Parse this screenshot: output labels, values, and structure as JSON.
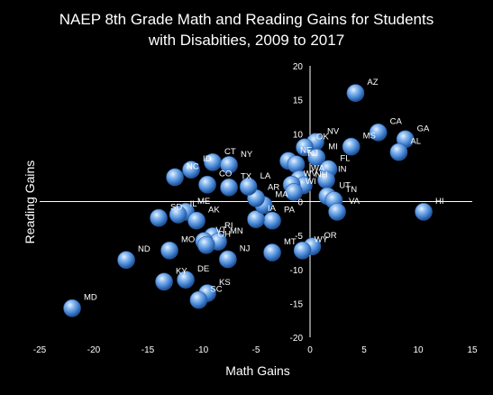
{
  "chart_data": {
    "type": "scatter",
    "title": [
      "NAEP 8th Grade Math and Reading Gains for Students",
      "with Disabities, 2009 to 2017"
    ],
    "xlabel": "Math Gains",
    "ylabel": "Reading Gains",
    "xlim": [
      -25,
      15
    ],
    "ylim": [
      -20,
      20
    ],
    "xticks": [
      -25,
      -20,
      -15,
      -10,
      -5,
      0,
      5,
      10,
      15
    ],
    "yticks": [
      -20,
      -15,
      -10,
      -5,
      0,
      5,
      10,
      15,
      20
    ],
    "grid": false,
    "marker_color": "#4f8fd6",
    "background": "#000000",
    "points": [
      {
        "label": "AZ",
        "x": 4.2,
        "y": 16
      },
      {
        "label": "CA",
        "x": 6.3,
        "y": 10.2
      },
      {
        "label": "GA",
        "x": 8.8,
        "y": 9.2
      },
      {
        "label": "AL",
        "x": 8.2,
        "y": 7.3
      },
      {
        "label": "MS",
        "x": 3.8,
        "y": 8.1
      },
      {
        "label": "NV",
        "x": 0.5,
        "y": 8.8
      },
      {
        "label": "OK",
        "x": -0.5,
        "y": 8
      },
      {
        "label": "MI",
        "x": 0.6,
        "y": 6.5
      },
      {
        "label": "NE",
        "x": -2,
        "y": 6
      },
      {
        "label": "NJ",
        "x": -1.3,
        "y": 5.5
      },
      {
        "label": "FL",
        "x": 1.7,
        "y": 4.8
      },
      {
        "label": "IN",
        "x": 1.5,
        "y": 3.2
      },
      {
        "label": "WA",
        "x": -1,
        "y": 3.3
      },
      {
        "label": "NH",
        "x": -0.6,
        "y": 2.4
      },
      {
        "label": "WV",
        "x": -1.7,
        "y": 2.5
      },
      {
        "label": "WI",
        "x": -1.5,
        "y": 1.4
      },
      {
        "label": "UT",
        "x": 1.6,
        "y": 0.8
      },
      {
        "label": "TN",
        "x": 2.2,
        "y": 0.2
      },
      {
        "label": "HI",
        "x": 10.5,
        "y": -1.5
      },
      {
        "label": "VA",
        "x": 2.5,
        "y": -1.5
      },
      {
        "label": "PA",
        "x": -3.5,
        "y": -2.8
      },
      {
        "label": "IA",
        "x": -5,
        "y": -2.6
      },
      {
        "label": "MA",
        "x": -4.3,
        "y": -0.5
      },
      {
        "label": "AR",
        "x": -5,
        "y": 0.5
      },
      {
        "label": "LA",
        "x": -5.7,
        "y": 2.2
      },
      {
        "label": "TX",
        "x": -7.5,
        "y": 2.1
      },
      {
        "label": "CO",
        "x": -9.5,
        "y": 2.5
      },
      {
        "label": "CT",
        "x": -9,
        "y": 5.8
      },
      {
        "label": "NY",
        "x": -7.5,
        "y": 5.4
      },
      {
        "label": "ID",
        "x": -11,
        "y": 4.7
      },
      {
        "label": "NC",
        "x": -12.5,
        "y": 3.6
      },
      {
        "label": "ME",
        "x": -11.5,
        "y": -1.5
      },
      {
        "label": "IL",
        "x": -12.2,
        "y": -1.9
      },
      {
        "label": "AK",
        "x": -10.5,
        "y": -2.8
      },
      {
        "label": "SD",
        "x": -14,
        "y": -2.4
      },
      {
        "label": "RI",
        "x": -9,
        "y": -5.1
      },
      {
        "label": "MN",
        "x": -8.5,
        "y": -5.9
      },
      {
        "label": "VT",
        "x": -9.8,
        "y": -5.8
      },
      {
        "label": "OH",
        "x": -9.6,
        "y": -6.4
      },
      {
        "label": "MO",
        "x": -13,
        "y": -7.2
      },
      {
        "label": "ND",
        "x": -17,
        "y": -8.6
      },
      {
        "label": "NJ",
        "x": -7.6,
        "y": -8.5
      },
      {
        "label": "OR",
        "x": 0.2,
        "y": -6.6
      },
      {
        "label": "WY",
        "x": -0.7,
        "y": -7.2
      },
      {
        "label": "MT",
        "x": -3.5,
        "y": -7.5
      },
      {
        "label": "DE",
        "x": -11.5,
        "y": -11.5
      },
      {
        "label": "KY",
        "x": -13.5,
        "y": -11.8
      },
      {
        "label": "KS",
        "x": -9.5,
        "y": -13.5
      },
      {
        "label": "SC",
        "x": -10.3,
        "y": -14.5
      },
      {
        "label": "MD",
        "x": -22,
        "y": -15.7
      }
    ]
  }
}
